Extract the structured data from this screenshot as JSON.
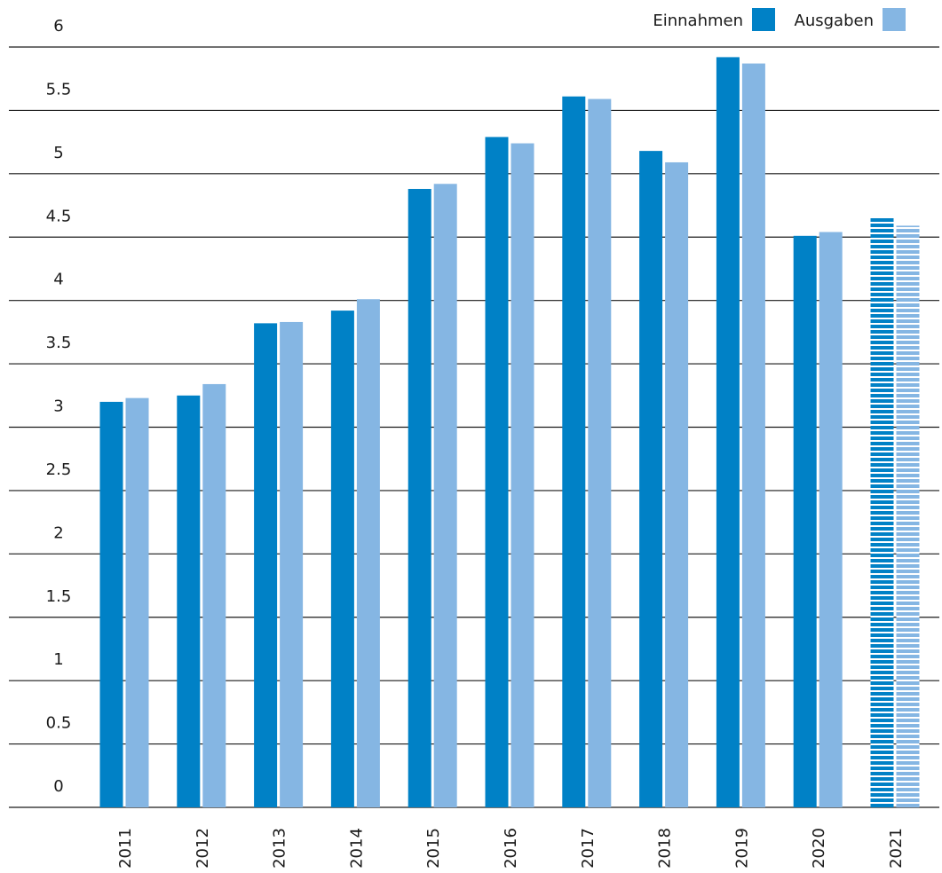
{
  "chart_data": {
    "type": "bar",
    "title": "",
    "xlabel": "",
    "ylabel": "",
    "categories": [
      "2011",
      "2012",
      "2013",
      "2014",
      "2015",
      "2016",
      "2017",
      "2018",
      "2019",
      "2020",
      "2021"
    ],
    "series": [
      {
        "name": "Einnahmen",
        "color": "#0081c6",
        "values": [
          3.2,
          3.25,
          3.82,
          3.92,
          4.88,
          5.29,
          5.61,
          5.18,
          5.92,
          4.51,
          4.66
        ]
      },
      {
        "name": "Ausgaben",
        "color": "#85b6e3",
        "values": [
          3.23,
          3.34,
          3.83,
          4.01,
          4.92,
          5.24,
          5.59,
          5.09,
          5.87,
          4.54,
          4.59
        ]
      }
    ],
    "hatched_categories": [
      "2021"
    ],
    "ylim": [
      0,
      6
    ],
    "yticks": [
      0,
      0.5,
      1,
      1.5,
      2,
      2.5,
      3,
      3.5,
      4,
      4.5,
      5,
      5.5,
      6
    ],
    "ytick_labels": [
      "0",
      "0.5",
      "1",
      "1.5",
      "2",
      "2.5",
      "3",
      "3.5",
      "4",
      "4.5",
      "5",
      "5.5",
      "6"
    ],
    "grid": "horizontal",
    "legend_position": "top-right"
  }
}
